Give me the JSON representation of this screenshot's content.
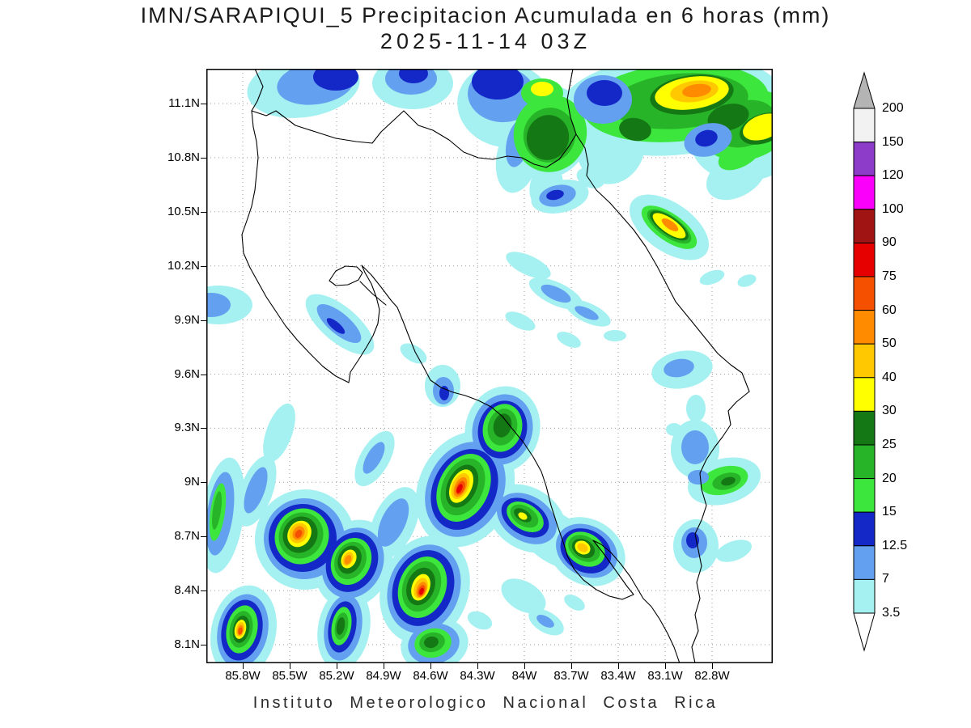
{
  "header": {
    "title": "IMN/SARAPIQUI_5 Precipitacion Acumulada en 6 horas (mm)",
    "datetime": "2025-11-14 03Z"
  },
  "footer": {
    "credit": "Instituto Meteorologico Nacional Costa Rica"
  },
  "map": {
    "y_ticks": [
      "11.1N",
      "10.8N",
      "10.5N",
      "10.2N",
      "9.9N",
      "9.6N",
      "9.3N",
      "9N",
      "8.7N",
      "8.4N",
      "8.1N"
    ],
    "x_ticks": [
      "85.8W",
      "85.5W",
      "85.2W",
      "84.9W",
      "84.6W",
      "84.3W",
      "84W",
      "83.7W",
      "83.4W",
      "83.1W",
      "82.8W"
    ]
  },
  "legend": {
    "unit": "mm",
    "levels_top_to_bottom": [
      "200",
      "150",
      "120",
      "100",
      "90",
      "75",
      "60",
      "50",
      "40",
      "30",
      "25",
      "20",
      "15",
      "12.5",
      "7",
      "3.5"
    ],
    "cell_colors_top_to_bottom": [
      "#f2f2f2",
      "#8c3cc8",
      "#fa00fa",
      "#a01414",
      "#e60000",
      "#f55000",
      "#ff8c00",
      "#ffc800",
      "#ffff00",
      "#147814",
      "#28b428",
      "#3ce63c",
      "#1428c8",
      "#64a0f0",
      "#a5f0f0"
    ],
    "above_max_color": "#b4b4b4",
    "below_min_color": "#ffffff"
  },
  "chart_data": {
    "type": "heatmap",
    "title": "IMN/SARAPIQUI_5 Precipitacion Acumulada en 6 horas (mm)",
    "valid_time": "2025-11-14 03Z",
    "lat_range": [
      "8.1N",
      "11.1N"
    ],
    "lon_range": [
      "85.8W",
      "82.8W"
    ],
    "scale_levels_mm": [
      3.5,
      7,
      12.5,
      15,
      20,
      25,
      30,
      40,
      50,
      60,
      75,
      90,
      100,
      120,
      150,
      200
    ],
    "notable_maxima": [
      {
        "approx_location": "9.0N 84.35W",
        "peak_band_mm": "75-90"
      },
      {
        "approx_location": "8.45N 84.35W",
        "peak_band_mm": "60-90"
      },
      {
        "approx_location": "8.65N 85.55W",
        "peak_band_mm": "50-60"
      },
      {
        "approx_location": "8.6N 85.25W",
        "peak_band_mm": "50-60"
      },
      {
        "approx_location": "8.1N 85.65W",
        "peak_band_mm": "60-75"
      },
      {
        "approx_location": "8.6N 83.7W",
        "peak_band_mm": "50-60"
      },
      {
        "approx_location": "11.2N 83.15W (NE of border)",
        "peak_band_mm": "50-60"
      },
      {
        "approx_location": "10.4N 83.35W",
        "peak_band_mm": "50-60"
      }
    ]
  }
}
